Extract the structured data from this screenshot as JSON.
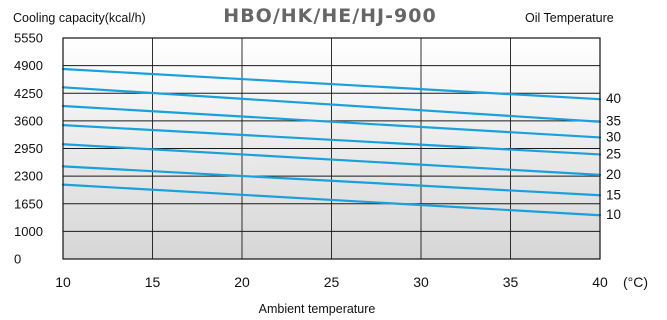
{
  "chart_data": {
    "type": "line",
    "title": "HBO/HK/HE/HJ-900",
    "ylabel": "Cooling capacity(kcal/h)",
    "xlabel": "Ambient temperature",
    "x_unit": "(°C)",
    "legend_title": "Oil Temperature",
    "legend_placement": "right",
    "grid": true,
    "xlim": [
      10,
      40
    ],
    "ylim": [
      0,
      5550
    ],
    "xticks": [
      10,
      15,
      20,
      25,
      30,
      35,
      40
    ],
    "yticks": [
      0,
      1000,
      1650,
      2300,
      2950,
      3600,
      4250,
      4900,
      5550
    ],
    "line_color": "#1aa0dc",
    "series": [
      {
        "name": "40",
        "x": [
          10,
          40
        ],
        "y": [
          4820,
          4110
        ]
      },
      {
        "name": "35",
        "x": [
          10,
          40
        ],
        "y": [
          4390,
          3580
        ]
      },
      {
        "name": "30",
        "x": [
          10,
          40
        ],
        "y": [
          3950,
          3210
        ]
      },
      {
        "name": "25",
        "x": [
          10,
          40
        ],
        "y": [
          3500,
          2810
        ]
      },
      {
        "name": "20",
        "x": [
          10,
          40
        ],
        "y": [
          3050,
          2330
        ]
      },
      {
        "name": "15",
        "x": [
          10,
          40
        ],
        "y": [
          2530,
          1850
        ]
      },
      {
        "name": "10",
        "x": [
          10,
          40
        ],
        "y": [
          2100,
          1380
        ]
      }
    ]
  }
}
